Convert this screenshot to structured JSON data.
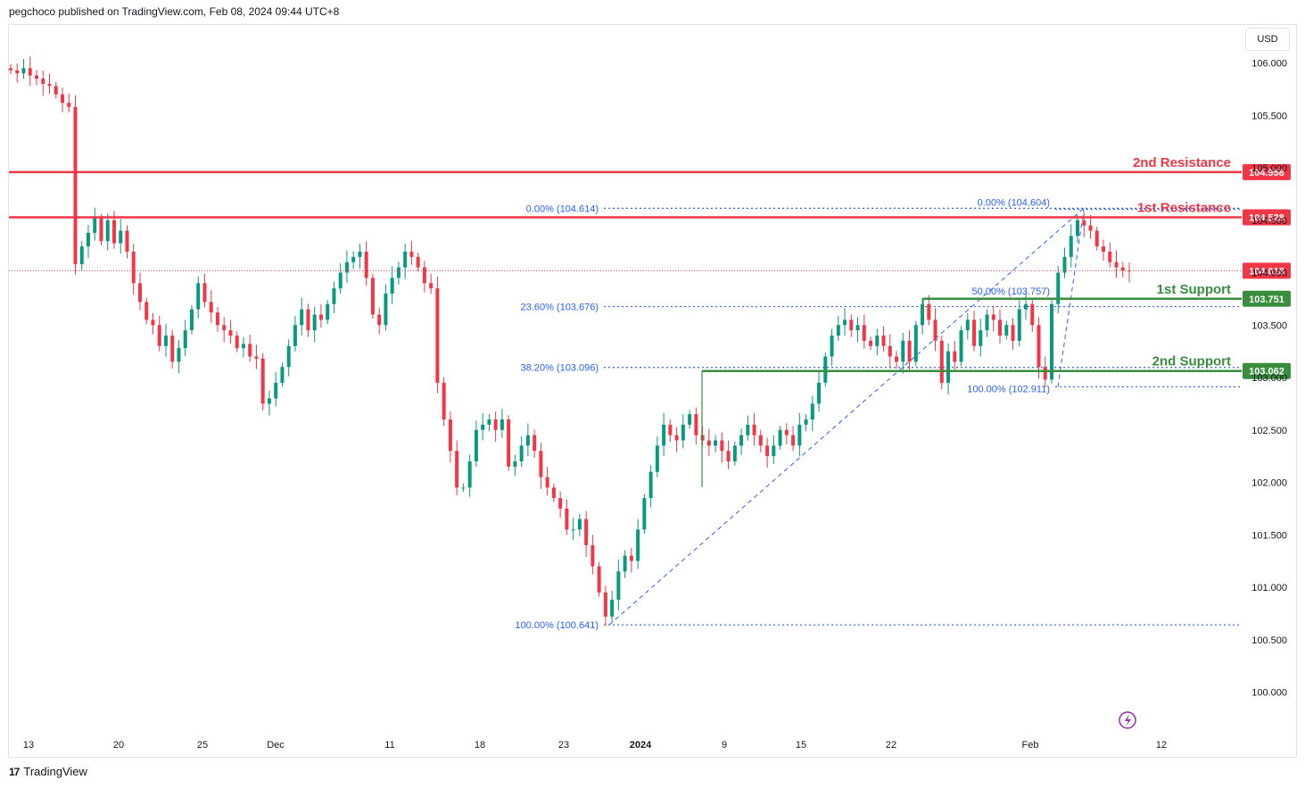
{
  "header": {
    "publisher": "pegchoco published on TradingView.com, Feb 08, 2024 09:44 UTC+8"
  },
  "footer": {
    "brand": "TradingView",
    "logo": "17"
  },
  "currency": "USD",
  "colors": {
    "up": "#089981",
    "down": "#f23645",
    "resistance": "#f23645",
    "support": "#388e3c",
    "fib": "#2962ff",
    "axis_text": "#131722"
  },
  "chart_data": {
    "type": "candlestick",
    "currency": "USD",
    "ylim": [
      99.82,
      106.17
    ],
    "y_ticks": [
      "106.000",
      "105.500",
      "105.000",
      "104.500",
      "104.000",
      "103.500",
      "103.000",
      "102.500",
      "102.000",
      "101.500",
      "101.000",
      "100.500",
      "100.000"
    ],
    "x_ticks": [
      "13",
      "20",
      "25",
      "Dec",
      "11",
      "18",
      "23",
      "2024",
      "9",
      "15",
      "22",
      "Feb",
      "12"
    ],
    "levels": [
      {
        "name": "2nd Resistance",
        "value": 104.958,
        "tag": "104.958",
        "kind": "resistance"
      },
      {
        "name": "1st Resistance",
        "value": 104.528,
        "tag": "104.528",
        "kind": "resistance"
      },
      {
        "name": "1st Support",
        "value": 103.751,
        "tag": "103.751",
        "kind": "support"
      },
      {
        "name": "2nd Support",
        "value": 103.062,
        "tag": "103.062",
        "kind": "support"
      }
    ],
    "last_price": {
      "value": 104.018,
      "tag": "104.018"
    },
    "fib_main": [
      {
        "label": "0.00% (104.614)",
        "value": 104.614
      },
      {
        "label": "23.60% (103.676)",
        "value": 103.676
      },
      {
        "label": "38.20% (103.096)",
        "value": 103.096
      },
      {
        "label": "100.00% (100.641)",
        "value": 100.641
      }
    ],
    "fib_recent": [
      {
        "label": "0.00% (104.604)",
        "value": 104.604
      },
      {
        "label": "50.00% (103.757)",
        "value": 103.757
      },
      {
        "label": "100.00% (102.911)",
        "value": 102.911
      }
    ],
    "closes": [
      105.93,
      105.9,
      105.95,
      105.88,
      105.85,
      105.8,
      105.78,
      105.7,
      105.62,
      105.58,
      104.08,
      104.25,
      104.38,
      104.52,
      104.3,
      104.5,
      104.28,
      104.4,
      104.2,
      103.9,
      103.72,
      103.55,
      103.5,
      103.3,
      103.4,
      103.15,
      103.28,
      103.45,
      103.65,
      103.9,
      103.72,
      103.62,
      103.5,
      103.45,
      103.4,
      103.28,
      103.32,
      103.2,
      103.18,
      102.75,
      102.8,
      102.95,
      103.1,
      103.3,
      103.5,
      103.65,
      103.45,
      103.6,
      103.55,
      103.7,
      103.85,
      104.0,
      104.1,
      104.15,
      104.2,
      103.95,
      103.6,
      103.5,
      103.8,
      103.95,
      104.05,
      104.2,
      104.15,
      104.05,
      103.9,
      103.85,
      102.95,
      102.6,
      102.3,
      101.95,
      101.95,
      102.2,
      102.5,
      102.55,
      102.6,
      102.5,
      102.6,
      102.15,
      102.2,
      102.35,
      102.45,
      102.3,
      102.05,
      101.95,
      101.85,
      101.75,
      101.55,
      101.55,
      101.65,
      101.4,
      101.2,
      100.95,
      100.72,
      100.88,
      101.15,
      101.3,
      101.25,
      101.55,
      101.85,
      102.1,
      102.35,
      102.55,
      102.45,
      102.4,
      102.55,
      102.65,
      102.45,
      102.4,
      102.35,
      102.4,
      102.3,
      102.2,
      102.35,
      102.45,
      102.55,
      102.45,
      102.35,
      102.25,
      102.35,
      102.5,
      102.45,
      102.35,
      102.55,
      102.6,
      102.75,
      102.95,
      103.2,
      103.4,
      103.5,
      103.55,
      103.45,
      103.5,
      103.35,
      103.3,
      103.4,
      103.3,
      103.2,
      103.15,
      103.35,
      103.15,
      103.5,
      103.7,
      103.55,
      103.35,
      102.95,
      103.25,
      103.15,
      103.45,
      103.55,
      103.3,
      103.45,
      103.6,
      103.55,
      103.4,
      103.5,
      103.35,
      103.65,
      103.7,
      103.5,
      103.1,
      102.98,
      103.7,
      104.0,
      104.15,
      104.35,
      104.5,
      104.45,
      104.4,
      104.25,
      104.2,
      104.1,
      104.05,
      104.02,
      104.018
    ]
  }
}
